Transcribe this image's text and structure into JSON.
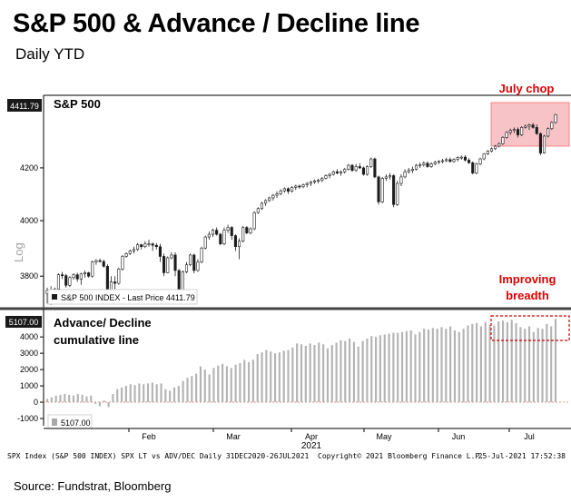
{
  "title": "S&P 500 & Advance / Decline line",
  "subtitle": "Daily YTD",
  "source": "Source: Fundstrat, Bloomberg",
  "colors": {
    "bar": "#b4b4b4",
    "candle_up": "#ffffff",
    "candle_down": "#1c1c1c",
    "highlight_fill": "#f7c3c7",
    "highlight_border": "#ff6f6f",
    "annotation_red": "#e00000",
    "dashed_box": "#d40000",
    "zero_line": "#e09088"
  },
  "chart_data": [
    {
      "type": "candlestick",
      "name": "S&P 500",
      "legend": "S&P 500 INDEX - Last Price 4411.79",
      "last_price_label": "4411.79",
      "y_axis_label": "Log",
      "y_ticks": [
        "4200",
        "4000",
        "3800"
      ],
      "ylim": [
        3700,
        4480
      ],
      "annotation": "July chop",
      "candles": [
        [
          3740,
          3760,
          3705,
          3750
        ],
        [
          3750,
          3765,
          3700,
          3708
        ],
        [
          3708,
          3760,
          3705,
          3755
        ],
        [
          3755,
          3810,
          3745,
          3805
        ],
        [
          3805,
          3815,
          3790,
          3802
        ],
        [
          3802,
          3808,
          3760,
          3768
        ],
        [
          3768,
          3800,
          3762,
          3795
        ],
        [
          3795,
          3810,
          3788,
          3805
        ],
        [
          3805,
          3812,
          3780,
          3790
        ],
        [
          3790,
          3812,
          3770,
          3808
        ],
        [
          3808,
          3820,
          3795,
          3812
        ],
        [
          3812,
          3815,
          3795,
          3800
        ],
        [
          3800,
          3855,
          3795,
          3850
        ],
        [
          3850,
          3860,
          3840,
          3855
        ],
        [
          3855,
          3862,
          3848,
          3852
        ],
        [
          3852,
          3858,
          3830,
          3835
        ],
        [
          3835,
          3842,
          3738,
          3750
        ],
        [
          3750,
          3800,
          3715,
          3780
        ],
        [
          3780,
          3800,
          3750,
          3775
        ],
        [
          3775,
          3830,
          3770,
          3825
        ],
        [
          3825,
          3875,
          3820,
          3870
        ],
        [
          3870,
          3885,
          3865,
          3880
        ],
        [
          3880,
          3895,
          3875,
          3890
        ],
        [
          3890,
          3905,
          3880,
          3895
        ],
        [
          3895,
          3918,
          3890,
          3912
        ],
        [
          3912,
          3915,
          3895,
          3905
        ],
        [
          3905,
          3925,
          3900,
          3915
        ],
        [
          3915,
          3930,
          3905,
          3915
        ],
        [
          3915,
          3920,
          3890,
          3910
        ],
        [
          3910,
          3918,
          3895,
          3905
        ],
        [
          3905,
          3915,
          3850,
          3870
        ],
        [
          3870,
          3880,
          3800,
          3812
        ],
        [
          3812,
          3870,
          3810,
          3865
        ],
        [
          3865,
          3885,
          3860,
          3875
        ],
        [
          3875,
          3885,
          3800,
          3820
        ],
        [
          3820,
          3825,
          3730,
          3745
        ],
        [
          3745,
          3820,
          3740,
          3815
        ],
        [
          3815,
          3850,
          3810,
          3840
        ],
        [
          3840,
          3880,
          3835,
          3875
        ],
        [
          3875,
          3880,
          3810,
          3820
        ],
        [
          3820,
          3860,
          3815,
          3850
        ],
        [
          3850,
          3905,
          3845,
          3900
        ],
        [
          3900,
          3945,
          3895,
          3940
        ],
        [
          3940,
          3960,
          3930,
          3950
        ],
        [
          3950,
          3970,
          3940,
          3965
        ],
        [
          3965,
          3975,
          3945,
          3950
        ],
        [
          3950,
          3955,
          3910,
          3915
        ],
        [
          3915,
          3975,
          3910,
          3965
        ],
        [
          3965,
          3985,
          3955,
          3975
        ],
        [
          3975,
          3980,
          3930,
          3945
        ],
        [
          3945,
          3950,
          3890,
          3905
        ],
        [
          3905,
          3935,
          3860,
          3925
        ],
        [
          3925,
          3980,
          3920,
          3975
        ],
        [
          3975,
          3980,
          3950,
          3955
        ],
        [
          3955,
          3975,
          3950,
          3970
        ],
        [
          3970,
          4035,
          3965,
          4030
        ],
        [
          4030,
          4050,
          4025,
          4045
        ],
        [
          4045,
          4070,
          4040,
          4065
        ],
        [
          4065,
          4080,
          4055,
          4075
        ],
        [
          4075,
          4090,
          4070,
          4085
        ],
        [
          4085,
          4100,
          4075,
          4095
        ],
        [
          4095,
          4110,
          4085,
          4100
        ],
        [
          4100,
          4118,
          4095,
          4112
        ],
        [
          4112,
          4125,
          4105,
          4120
        ],
        [
          4120,
          4125,
          4100,
          4110
        ],
        [
          4110,
          4130,
          4105,
          4125
        ],
        [
          4125,
          4135,
          4115,
          4130
        ],
        [
          4130,
          4135,
          4120,
          4128
        ],
        [
          4128,
          4140,
          4122,
          4135
        ],
        [
          4135,
          4145,
          4125,
          4140
        ],
        [
          4140,
          4150,
          4130,
          4145
        ],
        [
          4145,
          4155,
          4138,
          4150
        ],
        [
          4150,
          4158,
          4140,
          4152
        ],
        [
          4152,
          4165,
          4145,
          4160
        ],
        [
          4160,
          4175,
          4155,
          4170
        ],
        [
          4170,
          4180,
          4160,
          4175
        ],
        [
          4175,
          4190,
          4170,
          4185
        ],
        [
          4185,
          4195,
          4175,
          4180
        ],
        [
          4180,
          4190,
          4170,
          4185
        ],
        [
          4185,
          4200,
          4178,
          4195
        ],
        [
          4195,
          4215,
          4190,
          4210
        ],
        [
          4210,
          4215,
          4185,
          4190
        ],
        [
          4190,
          4215,
          4185,
          4205
        ],
        [
          4205,
          4218,
          4195,
          4200
        ],
        [
          4200,
          4205,
          4170,
          4175
        ],
        [
          4175,
          4210,
          4170,
          4205
        ],
        [
          4205,
          4240,
          4200,
          4235
        ],
        [
          4235,
          4240,
          4160,
          4165
        ],
        [
          4165,
          4170,
          4060,
          4070
        ],
        [
          4070,
          4165,
          4065,
          4160
        ],
        [
          4160,
          4175,
          4150,
          4165
        ],
        [
          4165,
          4180,
          4155,
          4170
        ],
        [
          4170,
          4175,
          4050,
          4060
        ],
        [
          4060,
          4150,
          4055,
          4140
        ],
        [
          4140,
          4175,
          4130,
          4165
        ],
        [
          4165,
          4195,
          4160,
          4185
        ],
        [
          4185,
          4200,
          4178,
          4190
        ],
        [
          4190,
          4205,
          4180,
          4195
        ],
        [
          4195,
          4215,
          4190,
          4210
        ],
        [
          4210,
          4220,
          4200,
          4212
        ],
        [
          4212,
          4225,
          4205,
          4218
        ],
        [
          4218,
          4225,
          4200,
          4205
        ],
        [
          4205,
          4222,
          4200,
          4215
        ],
        [
          4215,
          4228,
          4210,
          4222
        ],
        [
          4222,
          4230,
          4215,
          4225
        ],
        [
          4225,
          4235,
          4218,
          4228
        ],
        [
          4228,
          4240,
          4222,
          4232
        ],
        [
          4232,
          4240,
          4220,
          4225
        ],
        [
          4225,
          4238,
          4220,
          4233
        ],
        [
          4233,
          4245,
          4225,
          4240
        ],
        [
          4240,
          4248,
          4232,
          4242
        ],
        [
          4242,
          4250,
          4225,
          4230
        ],
        [
          4230,
          4238,
          4215,
          4220
        ],
        [
          4220,
          4225,
          4175,
          4180
        ],
        [
          4180,
          4220,
          4175,
          4215
        ],
        [
          4215,
          4240,
          4210,
          4235
        ],
        [
          4235,
          4258,
          4230,
          4255
        ],
        [
          4255,
          4270,
          4250,
          4265
        ],
        [
          4265,
          4280,
          4260,
          4275
        ],
        [
          4275,
          4290,
          4270,
          4285
        ],
        [
          4285,
          4300,
          4280,
          4295
        ],
        [
          4295,
          4325,
          4290,
          4320
        ],
        [
          4320,
          4345,
          4315,
          4340
        ],
        [
          4340,
          4355,
          4330,
          4348
        ],
        [
          4348,
          4360,
          4338,
          4352
        ],
        [
          4352,
          4360,
          4320,
          4330
        ],
        [
          4330,
          4365,
          4325,
          4360
        ],
        [
          4360,
          4372,
          4355,
          4365
        ],
        [
          4365,
          4375,
          4350,
          4370
        ],
        [
          4370,
          4378,
          4355,
          4360
        ],
        [
          4360,
          4372,
          4330,
          4335
        ],
        [
          4335,
          4340,
          4250,
          4258
        ],
        [
          4258,
          4330,
          4255,
          4325
        ],
        [
          4325,
          4360,
          4320,
          4355
        ],
        [
          4355,
          4385,
          4350,
          4380
        ],
        [
          4380,
          4415,
          4375,
          4411.79
        ]
      ]
    },
    {
      "type": "bar",
      "name": "Advance/ Decline cumulative line",
      "title_line1": "Advance/ Decline",
      "title_line2": "cumulative line",
      "annotation_line1": "Improving",
      "annotation_line2": "breadth",
      "legend": "5107.00",
      "last_value_label": "5107.00",
      "y_ticks": [
        "4000",
        "3000",
        "2000",
        "1000",
        "0",
        "-1000"
      ],
      "ylim": [
        -1500,
        5400
      ],
      "values": [
        200,
        300,
        400,
        450,
        500,
        450,
        400,
        500,
        450,
        350,
        400,
        -100,
        -250,
        100,
        -300,
        500,
        800,
        900,
        1000,
        1100,
        1050,
        1150,
        1100,
        1150,
        1200,
        1100,
        1150,
        800,
        700,
        900,
        1000,
        1300,
        1500,
        1600,
        1750,
        2200,
        2000,
        1700,
        2100,
        2250,
        2350,
        2200,
        2100,
        2300,
        2400,
        2600,
        2450,
        2600,
        2950,
        3050,
        3200,
        3100,
        3000,
        3050,
        3150,
        3200,
        3350,
        3600,
        3550,
        3450,
        3600,
        3500,
        3650,
        3550,
        3300,
        3500,
        3650,
        3800,
        3750,
        3900,
        3700,
        3400,
        3750,
        3900,
        4050,
        4000,
        4100,
        4150,
        4200,
        4250,
        4250,
        4300,
        4350,
        4400,
        4150,
        4300,
        4500,
        4450,
        4550,
        4500,
        4600,
        4500,
        4650,
        4400,
        4300,
        4500,
        4700,
        4800,
        4850,
        4650,
        4900,
        4750,
        4700,
        4950,
        5000,
        4900,
        5050,
        4850,
        4600,
        4500,
        4650,
        4300,
        4550,
        4500,
        4800,
        4650,
        5107
      ]
    }
  ],
  "x_axis": {
    "months": [
      "Feb",
      "Mar",
      "Apr",
      "May",
      "Jun",
      "Jul"
    ],
    "year": "2021"
  },
  "footer": {
    "left": "SPX Index (S&P 500 INDEX) SPX LT vs ADV/DEC  Daily 31DEC2020-26JUL2021",
    "center": "Copyright© 2021 Bloomberg Finance L.P.",
    "right": "25-Jul-2021 17:52:38"
  }
}
